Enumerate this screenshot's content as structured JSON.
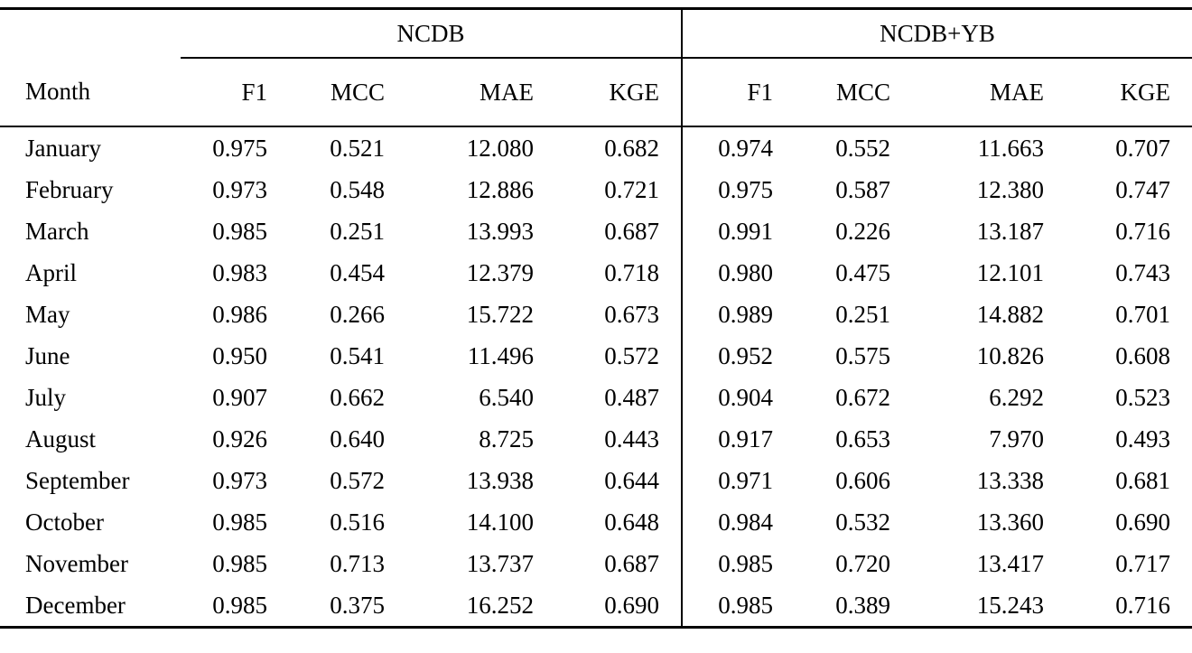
{
  "table": {
    "month_header": "Month",
    "group_headers": [
      {
        "label": "NCDB"
      },
      {
        "label": "NCDB+YB"
      }
    ],
    "metric_labels": [
      "F1",
      "MCC",
      "MAE",
      "KGE",
      "F1",
      "MCC",
      "MAE",
      "KGE"
    ],
    "rows": [
      {
        "month": "January",
        "values": [
          "0.975",
          "0.521",
          "12.080",
          "0.682",
          "0.974",
          "0.552",
          "11.663",
          "0.707"
        ]
      },
      {
        "month": "February",
        "values": [
          "0.973",
          "0.548",
          "12.886",
          "0.721",
          "0.975",
          "0.587",
          "12.380",
          "0.747"
        ]
      },
      {
        "month": "March",
        "values": [
          "0.985",
          "0.251",
          "13.993",
          "0.687",
          "0.991",
          "0.226",
          "13.187",
          "0.716"
        ]
      },
      {
        "month": "April",
        "values": [
          "0.983",
          "0.454",
          "12.379",
          "0.718",
          "0.980",
          "0.475",
          "12.101",
          "0.743"
        ]
      },
      {
        "month": "May",
        "values": [
          "0.986",
          "0.266",
          "15.722",
          "0.673",
          "0.989",
          "0.251",
          "14.882",
          "0.701"
        ]
      },
      {
        "month": "June",
        "values": [
          "0.950",
          "0.541",
          "11.496",
          "0.572",
          "0.952",
          "0.575",
          "10.826",
          "0.608"
        ]
      },
      {
        "month": "July",
        "values": [
          "0.907",
          "0.662",
          "6.540",
          "0.487",
          "0.904",
          "0.672",
          "6.292",
          "0.523"
        ]
      },
      {
        "month": "August",
        "values": [
          "0.926",
          "0.640",
          "8.725",
          "0.443",
          "0.917",
          "0.653",
          "7.970",
          "0.493"
        ]
      },
      {
        "month": "September",
        "values": [
          "0.973",
          "0.572",
          "13.938",
          "0.644",
          "0.971",
          "0.606",
          "13.338",
          "0.681"
        ]
      },
      {
        "month": "October",
        "values": [
          "0.985",
          "0.516",
          "14.100",
          "0.648",
          "0.984",
          "0.532",
          "13.360",
          "0.690"
        ]
      },
      {
        "month": "November",
        "values": [
          "0.985",
          "0.713",
          "13.737",
          "0.687",
          "0.985",
          "0.720",
          "13.417",
          "0.717"
        ]
      },
      {
        "month": "December",
        "values": [
          "0.985",
          "0.375",
          "16.252",
          "0.690",
          "0.985",
          "0.389",
          "15.243",
          "0.716"
        ]
      }
    ]
  }
}
